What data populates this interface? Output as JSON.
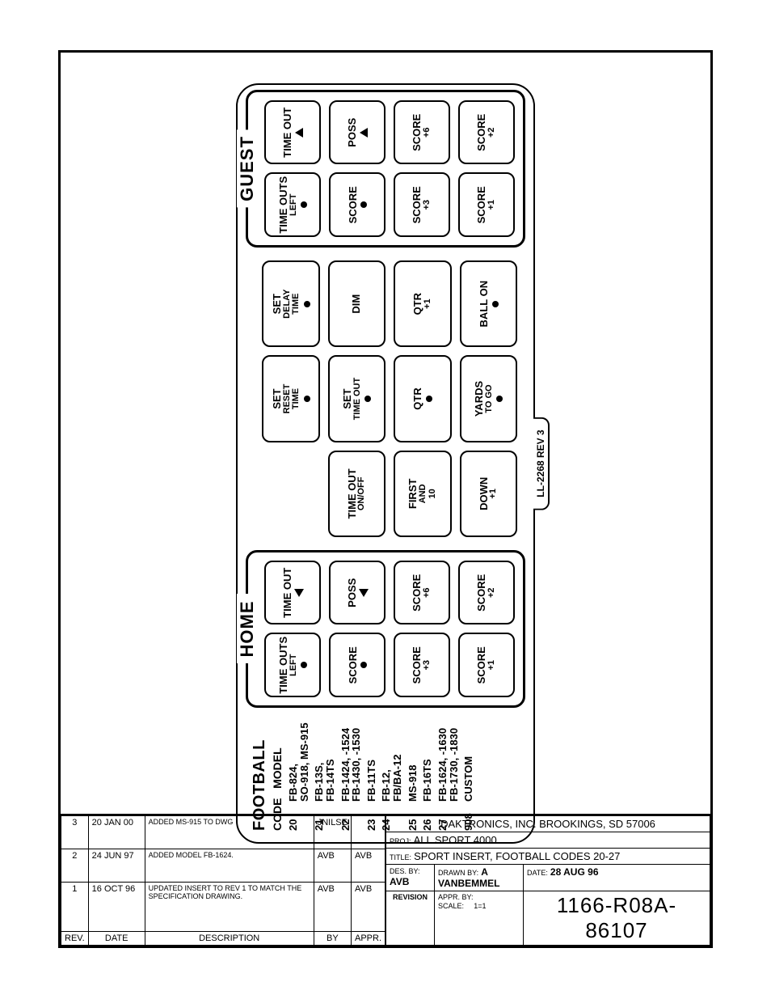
{
  "panel": {
    "tab_label": "LL-2268  REV 3",
    "codes": {
      "heading": "FOOTBALL",
      "sub_code": "CODE",
      "sub_model": "MODEL",
      "rows": [
        {
          "code": "20",
          "model": "FB-824,\nSO-918, MS-915"
        },
        {
          "code": "21",
          "model": "FB-13S,\nFB-14TS"
        },
        {
          "code": "22",
          "model": "FB-1424, -1524\nFB-1430, -1530"
        },
        {
          "code": "23",
          "model": "FB-11TS"
        },
        {
          "code": "24",
          "model": "FB-12,\nFB/BA-12"
        },
        {
          "code": "25",
          "model": "MS-918"
        },
        {
          "code": "26",
          "model": "FB-16TS"
        },
        {
          "code": "27",
          "model": "FB-1624, -1630\nFB-1730, -1830"
        },
        {
          "code": "908",
          "model": "CUSTOM"
        }
      ]
    },
    "home": {
      "legend": "HOME",
      "keys": [
        {
          "l1": "TIME OUTS",
          "l2": "LEFT",
          "mark": "dot"
        },
        {
          "l1": "TIME OUT",
          "mark": "tri-left"
        },
        {
          "l1": "SCORE",
          "mark": "dot"
        },
        {
          "l1": "POSS",
          "mark": "tri-left"
        },
        {
          "l1": "SCORE",
          "l2": "+3"
        },
        {
          "l1": "SCORE",
          "l2": "+6"
        },
        {
          "l1": "SCORE",
          "l2": "+1"
        },
        {
          "l1": "SCORE",
          "l2": "+2"
        }
      ]
    },
    "center": [
      {
        "blank": true
      },
      {
        "l1": "SET",
        "l2": "RESET",
        "l3": "TIME",
        "mark": "dot"
      },
      {
        "l1": "SET",
        "l2": "DELAY",
        "l3": "TIME",
        "mark": "dot"
      },
      {
        "l1": "TIME OUT",
        "l2": "ON/OFF"
      },
      {
        "l1": "SET",
        "l2": "TIME OUT",
        "mark": "dot"
      },
      {
        "l1": "DIM"
      },
      {
        "l1": "FIRST",
        "l2": "AND",
        "l3": "10"
      },
      {
        "l1": "QTR",
        "mark": "dot"
      },
      {
        "l1": "QTR",
        "l2": "+1"
      },
      {
        "l1": "DOWN",
        "l2": "+1"
      },
      {
        "l1": "YARDS",
        "l2": "TO GO",
        "mark": "dot"
      },
      {
        "l1": "BALL ON",
        "mark": "dot"
      }
    ],
    "guest": {
      "legend": "GUEST",
      "keys": [
        {
          "l1": "TIME OUTS",
          "l2": "LEFT",
          "mark": "dot"
        },
        {
          "l1": "TIME OUT",
          "mark": "tri-up"
        },
        {
          "l1": "SCORE",
          "mark": "dot"
        },
        {
          "l1": "POSS",
          "mark": "tri-up"
        },
        {
          "l1": "SCORE",
          "l2": "+3"
        },
        {
          "l1": "SCORE",
          "l2": "+6"
        },
        {
          "l1": "SCORE",
          "l2": "+1"
        },
        {
          "l1": "SCORE",
          "l2": "+2"
        }
      ]
    }
  },
  "titleblock": {
    "revisions": [
      {
        "rev": "3",
        "date": "20 JAN 00",
        "desc": "ADDED MS-915 TO DWG",
        "by": "JNILSE",
        "appr": ""
      },
      {
        "rev": "2",
        "date": "24 JUN 97",
        "desc": "ADDED MODEL FB-1624.",
        "by": "AVB",
        "appr": "AVB"
      },
      {
        "rev": "1",
        "date": "16 OCT 96",
        "desc": "UPDATED INSERT TO REV 1 TO MATCH THE SPECIFICATION DRAWING.",
        "by": "AVB",
        "appr": "AVB"
      }
    ],
    "rev_headers": {
      "rev": "REV.",
      "date": "DATE",
      "desc": "DESCRIPTION",
      "by": "BY",
      "appr": "APPR."
    },
    "company": "DAKTRONICS, INC.   BROOKINGS, SD 57006",
    "proj_label": "PROJ:",
    "proj": "ALL SPORT 4000",
    "title_label": "TITLE:",
    "title": "SPORT INSERT, FOOTBALL CODES 20-27",
    "des_by_label": "DES. BY:",
    "des_by": "AVB",
    "drawn_by_label": "DRAWN BY:",
    "drawn_by": "A VANBEMMEL",
    "date_label": "DATE:",
    "date": "28 AUG 96",
    "revision_label": "REVISION",
    "appr_by_label": "APPR. BY:",
    "scale_label": "SCALE:",
    "scale": "1=1",
    "drawing_no": "1166-R08A-86107"
  }
}
